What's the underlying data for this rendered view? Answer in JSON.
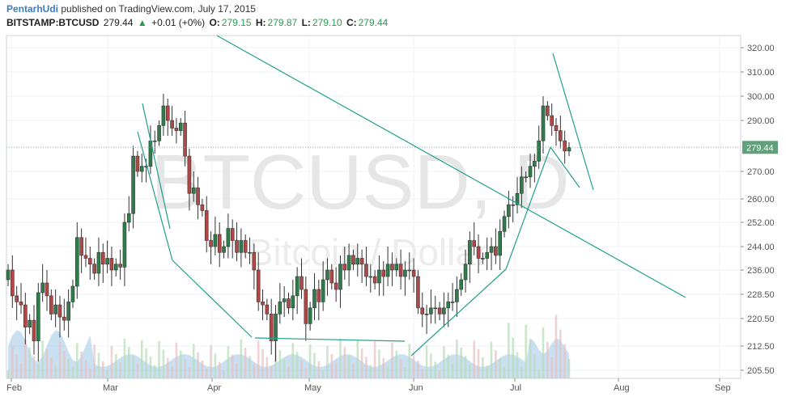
{
  "header": {
    "author": "PentarhUdi",
    "published": "published on TradingView.com, July 17, 2015",
    "symbol": "BITSTAMP:BTCUSD",
    "last": "279.44",
    "change_arrow": "▲",
    "change": "+0.01 (+0%)",
    "o_label": "O:",
    "o": "279.15",
    "h_label": "H:",
    "h": "279.87",
    "l_label": "L:",
    "l": "279.10",
    "c_label": "C:",
    "c": "279.44"
  },
  "watermark": {
    "main": "BTCUSD, D",
    "sub": "Bitcoin / Dollar"
  },
  "colors": {
    "up": "#2e7d4a",
    "down": "#b04848",
    "trendline": "#20a08a",
    "price_tag": "#5fa078",
    "volume": "#9fc6e8"
  },
  "chart_data": {
    "type": "candlestick",
    "price_label": "279.44",
    "y_ticks": [
      "320.00",
      "310.00",
      "300.00",
      "290.00",
      "279.44",
      "270.00",
      "260.00",
      "252.00",
      "244.00",
      "236.00",
      "228.50",
      "220.50",
      "212.50",
      "205.50"
    ],
    "x_ticks": [
      "Feb",
      "Mar",
      "Apr",
      "May",
      "Jun",
      "Jul",
      "Aug",
      "Sep"
    ],
    "grid": true,
    "candles_approx_close": [
      236,
      228,
      226,
      225,
      218,
      220,
      214,
      229,
      232,
      228,
      222,
      225,
      221,
      220,
      226,
      231,
      247,
      241,
      240,
      238,
      235,
      242,
      238,
      240,
      236,
      238,
      237,
      252,
      255,
      276,
      270,
      272,
      272,
      282,
      282,
      288,
      296,
      290,
      287,
      286,
      289,
      276,
      262,
      264,
      258,
      256,
      246,
      244,
      248,
      242,
      244,
      250,
      246,
      242,
      246,
      242,
      242,
      236,
      226,
      225,
      222,
      214,
      222,
      226,
      227,
      224,
      228,
      234,
      230,
      219,
      224,
      230,
      226,
      233,
      236,
      232,
      230,
      238,
      236,
      241,
      238,
      240,
      238,
      234,
      234,
      232,
      236,
      234,
      238,
      236,
      238,
      234,
      236,
      236,
      234,
      224,
      222,
      222,
      224,
      224,
      222,
      224,
      226,
      226,
      230,
      233,
      238,
      246,
      244,
      240,
      240,
      242,
      244,
      241,
      249,
      254,
      258,
      258,
      262,
      268,
      268,
      272,
      274,
      282,
      296,
      292,
      288,
      286,
      282,
      278,
      279.44
    ]
  }
}
